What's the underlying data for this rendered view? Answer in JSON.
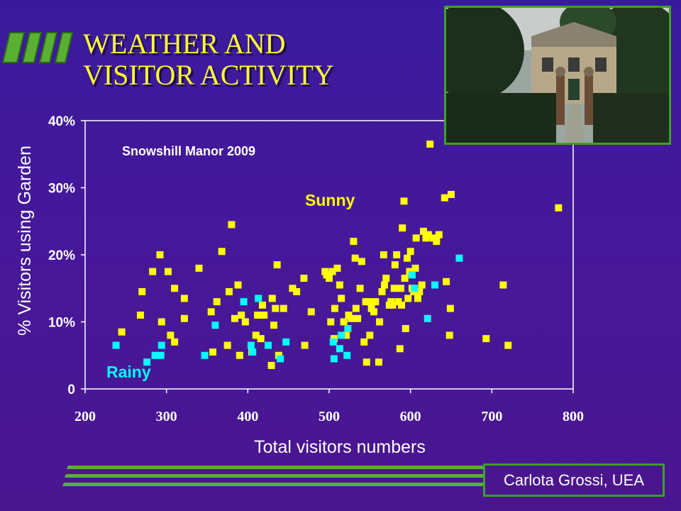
{
  "slide": {
    "title_line1": "WEATHER AND",
    "title_line2": "VISITOR ACTIVITY",
    "credit": "Carlota Grossi, UEA",
    "photo_icon": "manor-house-photo"
  },
  "colors": {
    "background": "#44189a",
    "title": "#ffff33",
    "sunny": "#ffff00",
    "rainy": "#00ffff",
    "accent_green": "#3da02a"
  },
  "chart_data": {
    "type": "scatter",
    "title": "",
    "annotation": "Snowshill Manor 2009",
    "xlabel": "Total visitors numbers",
    "ylabel": "% Visitors using Garden",
    "xlim": [
      200,
      800
    ],
    "ylim": [
      0,
      40
    ],
    "xticks": [
      "200",
      "300",
      "400",
      "500",
      "600",
      "700",
      "800"
    ],
    "yticks": [
      "0",
      "10%",
      "20%",
      "30%",
      "40%"
    ],
    "grid": false,
    "legend": "none",
    "series": [
      {
        "name": "Sunny",
        "color": "#ffff00",
        "points": [
          [
            245,
            8.5
          ],
          [
            268,
            11
          ],
          [
            270,
            14.5
          ],
          [
            283,
            17.5
          ],
          [
            292,
            20
          ],
          [
            294,
            10
          ],
          [
            302,
            17.5
          ],
          [
            305,
            8
          ],
          [
            310,
            15
          ],
          [
            310,
            7
          ],
          [
            322,
            13.5
          ],
          [
            322,
            10.5
          ],
          [
            340,
            18
          ],
          [
            355,
            11.5
          ],
          [
            357,
            5.5
          ],
          [
            362,
            13
          ],
          [
            368,
            20.5
          ],
          [
            375,
            6.5
          ],
          [
            377,
            14.5
          ],
          [
            380,
            24.5
          ],
          [
            384,
            10.5
          ],
          [
            388,
            15.5
          ],
          [
            390,
            5
          ],
          [
            392,
            11
          ],
          [
            397,
            10
          ],
          [
            405,
            5.5
          ],
          [
            410,
            8
          ],
          [
            412,
            11
          ],
          [
            416,
            7.5
          ],
          [
            418,
            12.5
          ],
          [
            420,
            11
          ],
          [
            429,
            3.5
          ],
          [
            430,
            13.5
          ],
          [
            432,
            9.5
          ],
          [
            434,
            12
          ],
          [
            436,
            18.5
          ],
          [
            438,
            5
          ],
          [
            444,
            12
          ],
          [
            455,
            15
          ],
          [
            460,
            14.5
          ],
          [
            469,
            16.5
          ],
          [
            470,
            6.5
          ],
          [
            478,
            11.5
          ],
          [
            495,
            17.5
          ],
          [
            497,
            17
          ],
          [
            500,
            16.5
          ],
          [
            502,
            10
          ],
          [
            504,
            17.5
          ],
          [
            506,
            7.5
          ],
          [
            507,
            12
          ],
          [
            510,
            18
          ],
          [
            513,
            15.5
          ],
          [
            515,
            13.5
          ],
          [
            518,
            10
          ],
          [
            521,
            8
          ],
          [
            524,
            11
          ],
          [
            527,
            10.5
          ],
          [
            530,
            22
          ],
          [
            532,
            19.5
          ],
          [
            533,
            12
          ],
          [
            535,
            10.5
          ],
          [
            538,
            15
          ],
          [
            540,
            19
          ],
          [
            543,
            7
          ],
          [
            545,
            13
          ],
          [
            546,
            4
          ],
          [
            549,
            13
          ],
          [
            550,
            8
          ],
          [
            552,
            12
          ],
          [
            555,
            11.5
          ],
          [
            557,
            13
          ],
          [
            561,
            4
          ],
          [
            562,
            10
          ],
          [
            565,
            14.5
          ],
          [
            567,
            20
          ],
          [
            568,
            15.5
          ],
          [
            570,
            16.5
          ],
          [
            574,
            12.5
          ],
          [
            576,
            13
          ],
          [
            578,
            12.5
          ],
          [
            580,
            15
          ],
          [
            581,
            18.5
          ],
          [
            583,
            20
          ],
          [
            585,
            13
          ],
          [
            587,
            6
          ],
          [
            588,
            15
          ],
          [
            589,
            12.5
          ],
          [
            590,
            24
          ],
          [
            592,
            28
          ],
          [
            593,
            16.5
          ],
          [
            594,
            9
          ],
          [
            596,
            19.5
          ],
          [
            597,
            13.5
          ],
          [
            599,
            17.5
          ],
          [
            600,
            20.5
          ],
          [
            602,
            15
          ],
          [
            604,
            14.5
          ],
          [
            606,
            18
          ],
          [
            607,
            22.5
          ],
          [
            609,
            13.5
          ],
          [
            611,
            14.5
          ],
          [
            614,
            15.5
          ],
          [
            616,
            23.5
          ],
          [
            619,
            22.5
          ],
          [
            622,
            23
          ],
          [
            624,
            36.5
          ],
          [
            628,
            22.5
          ],
          [
            632,
            22
          ],
          [
            635,
            23
          ],
          [
            642,
            28.5
          ],
          [
            644,
            16
          ],
          [
            648,
            8
          ],
          [
            649,
            12
          ],
          [
            650,
            29
          ],
          [
            693,
            7.5
          ],
          [
            714,
            15.5
          ],
          [
            720,
            6.5
          ],
          [
            782,
            27
          ]
        ]
      },
      {
        "name": "Rainy",
        "color": "#00ffff",
        "points": [
          [
            238,
            6.5
          ],
          [
            276,
            4
          ],
          [
            286,
            5
          ],
          [
            293,
            5
          ],
          [
            294,
            6.5
          ],
          [
            347,
            5
          ],
          [
            360,
            9.5
          ],
          [
            395,
            13
          ],
          [
            404,
            6.5
          ],
          [
            406,
            5.5
          ],
          [
            413,
            13.5
          ],
          [
            425,
            6.5
          ],
          [
            440,
            4.5
          ],
          [
            447,
            7
          ],
          [
            505,
            7
          ],
          [
            506,
            4.5
          ],
          [
            513,
            6
          ],
          [
            515,
            8
          ],
          [
            522,
            5
          ],
          [
            523,
            9
          ],
          [
            602,
            17
          ],
          [
            605,
            15
          ],
          [
            621,
            10.5
          ],
          [
            630,
            15.5
          ],
          [
            660,
            19.5
          ]
        ]
      }
    ],
    "series_labels": [
      {
        "text": "Sunny",
        "color": "#ffff00"
      },
      {
        "text": "Rainy",
        "color": "#00ffff"
      }
    ]
  }
}
